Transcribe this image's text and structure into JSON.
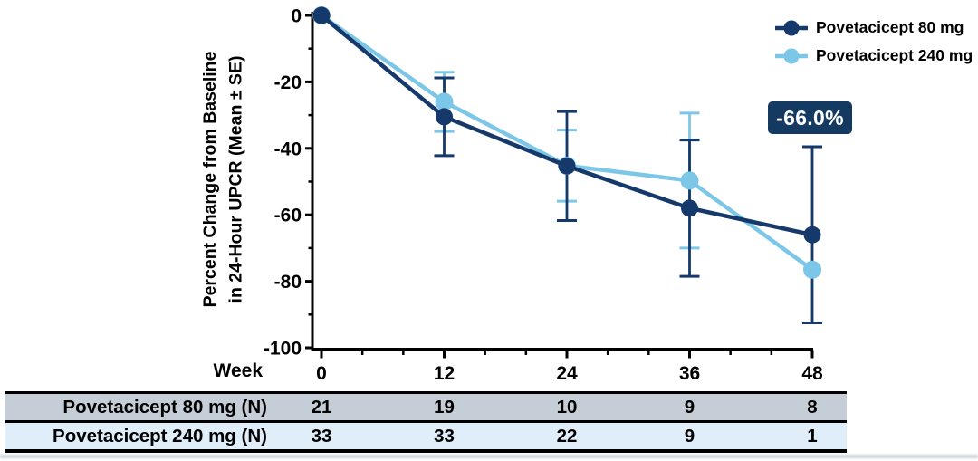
{
  "figure": {
    "background": "#FFFFFF"
  },
  "legend": {
    "items": [
      {
        "label": "Povetacicept 80 mg",
        "color": "#16396B"
      },
      {
        "label": "Povetacicept 240 mg",
        "color": "#7CC7E8"
      }
    ]
  },
  "annotation": {
    "text": "-66.0%",
    "bg": "#143A61",
    "text_color": "#FFFFFF"
  },
  "chart_data": {
    "type": "line",
    "x": [
      0,
      12,
      24,
      36,
      48
    ],
    "xlabel": "Week",
    "ylabel_line1": "Percent Change from Baseline",
    "ylabel_line2": "in 24-Hour UPCR (Mean ± SE)",
    "xlim": [
      0,
      48
    ],
    "ylim": [
      -100,
      0
    ],
    "yticks": [
      0,
      -20,
      -40,
      -60,
      -80,
      -100
    ],
    "yticks_minor": [
      -10,
      -30,
      -50,
      -70,
      -90
    ],
    "xticks_minor": [
      4,
      8,
      16,
      20,
      28,
      32,
      40,
      44
    ],
    "grid": false,
    "legend_position": "top-right",
    "series": [
      {
        "name": "Povetacicept 80 mg",
        "color": "#16396B",
        "values": [
          0,
          -30.5,
          -45.3,
          -58.0,
          -66.0
        ],
        "se": [
          0,
          11.7,
          16.4,
          20.5,
          26.5
        ]
      },
      {
        "name": "Povetacicept 240 mg",
        "color": "#7CC7E8",
        "values": [
          0,
          -26.0,
          -45.2,
          -49.7,
          -76.5
        ],
        "se": [
          0,
          8.9,
          10.7,
          20.3,
          0
        ]
      }
    ],
    "annotation": {
      "text": "-66.0%",
      "series": "Povetacicept 80 mg",
      "week": 48
    }
  },
  "table": {
    "rows": [
      {
        "label": "Povetacicept 80 mg (N)",
        "bg": "#C5CED6",
        "values": [
          "21",
          "19",
          "10",
          "9",
          "8"
        ]
      },
      {
        "label": "Povetacicept 240 mg (N)",
        "bg": "#DFEEF8",
        "values": [
          "33",
          "33",
          "22",
          "9",
          "1"
        ]
      }
    ]
  }
}
